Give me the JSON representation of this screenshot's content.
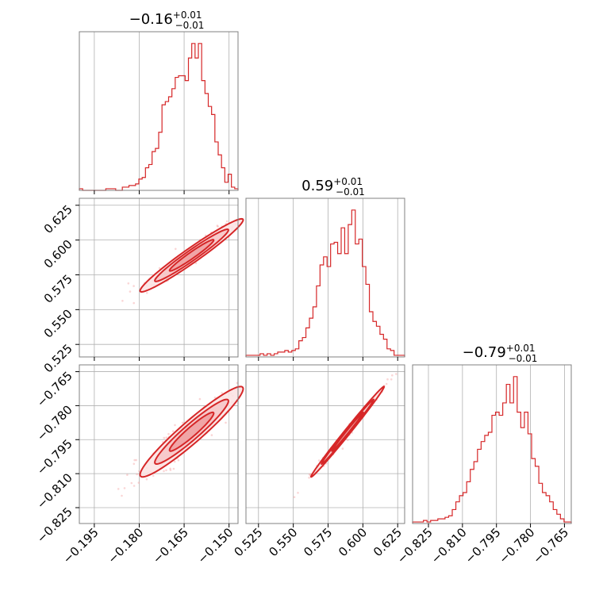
{
  "chart_data": {
    "type": "corner",
    "color": "#d62728",
    "parameters": [
      {
        "median": "−0.16",
        "err_plus": "+0.01",
        "err_minus": "−0.01",
        "range": [
          -0.2,
          -0.147
        ],
        "ticks": [
          -0.195,
          -0.18,
          -0.165,
          -0.15
        ],
        "tick_labels": [
          "−0.195",
          "−0.180",
          "−0.165",
          "−0.150"
        ]
      },
      {
        "median": "0.59",
        "err_plus": "+0.01",
        "err_minus": "−0.01",
        "range": [
          0.516,
          0.63
        ],
        "ticks": [
          0.525,
          0.55,
          0.575,
          0.6,
          0.625
        ],
        "tick_labels": [
          "0.525",
          "0.550",
          "0.575",
          "0.600",
          "0.625"
        ]
      },
      {
        "median": "−0.79",
        "err_plus": "+0.01",
        "err_minus": "−0.01",
        "range": [
          -0.832,
          -0.762
        ],
        "ticks": [
          -0.825,
          -0.81,
          -0.795,
          -0.78,
          -0.765
        ],
        "tick_labels": [
          "−0.825",
          "−0.810",
          "−0.795",
          "−0.780",
          "−0.765"
        ]
      }
    ],
    "histograms": [
      [
        1,
        0,
        0,
        0,
        0,
        0,
        0,
        0,
        1,
        1,
        1,
        0,
        0,
        2,
        2,
        3,
        3,
        4,
        7,
        8,
        14,
        16,
        24,
        26,
        36,
        53,
        55,
        58,
        63,
        70,
        71,
        71,
        68,
        82,
        91,
        82,
        91,
        68,
        60,
        52,
        47,
        30,
        22,
        14,
        5,
        10,
        2,
        1
      ],
      [
        1,
        1,
        1,
        1,
        2,
        1,
        2,
        1,
        2,
        3,
        3,
        4,
        3,
        4,
        5,
        10,
        12,
        18,
        24,
        31,
        44,
        57,
        62,
        56,
        70,
        71,
        64,
        80,
        64,
        82,
        91,
        70,
        73,
        56,
        45,
        28,
        22,
        19,
        14,
        11,
        5,
        4,
        1,
        1,
        1
      ],
      [
        1,
        1,
        1,
        2,
        1,
        2,
        2,
        3,
        3,
        4,
        5,
        9,
        14,
        18,
        20,
        27,
        35,
        40,
        48,
        53,
        57,
        59,
        70,
        72,
        70,
        78,
        90,
        78,
        95,
        72,
        62,
        72,
        58,
        42,
        37,
        26,
        20,
        18,
        14,
        9,
        6,
        3,
        1,
        1
      ]
    ],
    "correlations": {
      "1_0": 0.97,
      "2_0": 0.95,
      "2_1": 0.995
    },
    "spreads": [
      0.0082,
      0.0125,
      0.0095
    ],
    "centers": [
      -0.1625,
      0.589,
      -0.7915
    ]
  }
}
